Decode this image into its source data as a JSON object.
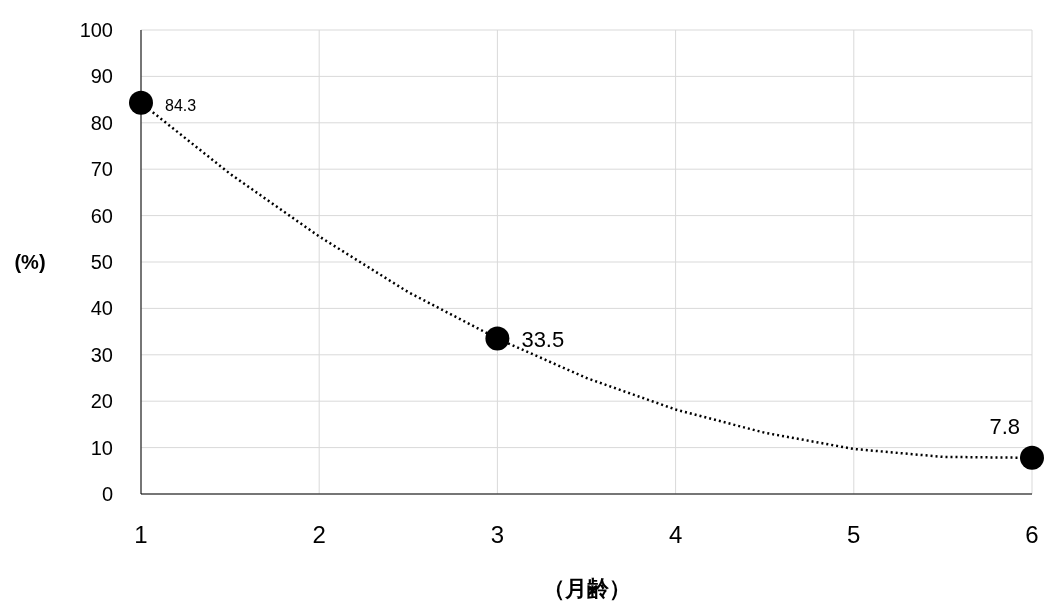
{
  "chart_data": {
    "type": "scatter",
    "xlabel": "（月齢）",
    "ylabel": "(%)",
    "xlim": [
      1,
      6
    ],
    "xticks": [
      1,
      2,
      3,
      4,
      5,
      6
    ],
    "ylim": [
      0,
      100
    ],
    "yticks": [
      0,
      10,
      20,
      30,
      40,
      50,
      60,
      70,
      80,
      90,
      100
    ],
    "grid": true,
    "series": [
      {
        "type": "line",
        "x": [
          1,
          1.5,
          2,
          2.5,
          3,
          3.5,
          4,
          4.5,
          5,
          5.5,
          6
        ],
        "values": [
          84.3,
          69,
          55.5,
          43.5,
          33.5,
          25,
          18.2,
          13.2,
          9.7,
          8,
          7.8
        ],
        "color": "#000000",
        "line_style": "dotted"
      },
      {
        "marker": "circle",
        "x": [
          1,
          3,
          6
        ],
        "values": [
          84.3,
          33.5,
          7.8
        ],
        "color": "#000000",
        "value_labels": [
          "84.3",
          "33.5",
          "7.8"
        ]
      }
    ]
  }
}
